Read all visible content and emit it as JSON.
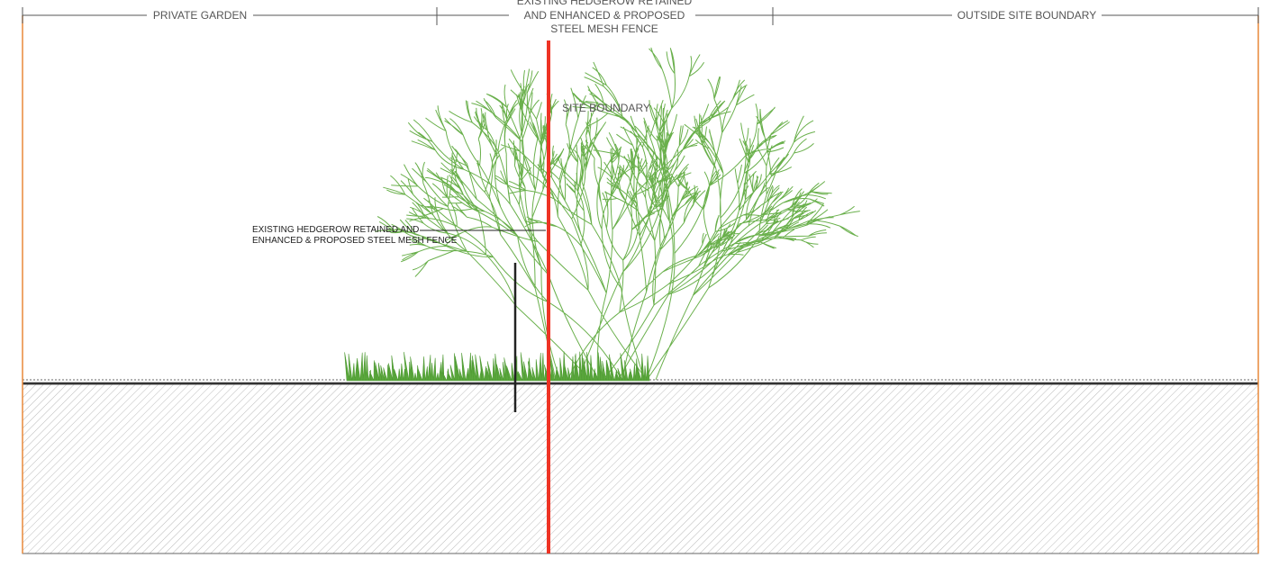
{
  "zones": [
    {
      "label": "PRIVATE GARDEN"
    },
    {
      "label_lines": [
        "EXISTING HEDGEROW RETAINED",
        "AND ENHANCED & PROPOSED",
        "STEEL MESH FENCE"
      ]
    },
    {
      "label": "OUTSIDE SITE BOUNDARY"
    }
  ],
  "boundary_label": "SITE BOUNDARY",
  "annotation": {
    "lines": [
      "EXISTING HEDGEROW RETAINED AND",
      "ENHANCED & PROPOSED STEEL MESH FENCE"
    ]
  }
}
